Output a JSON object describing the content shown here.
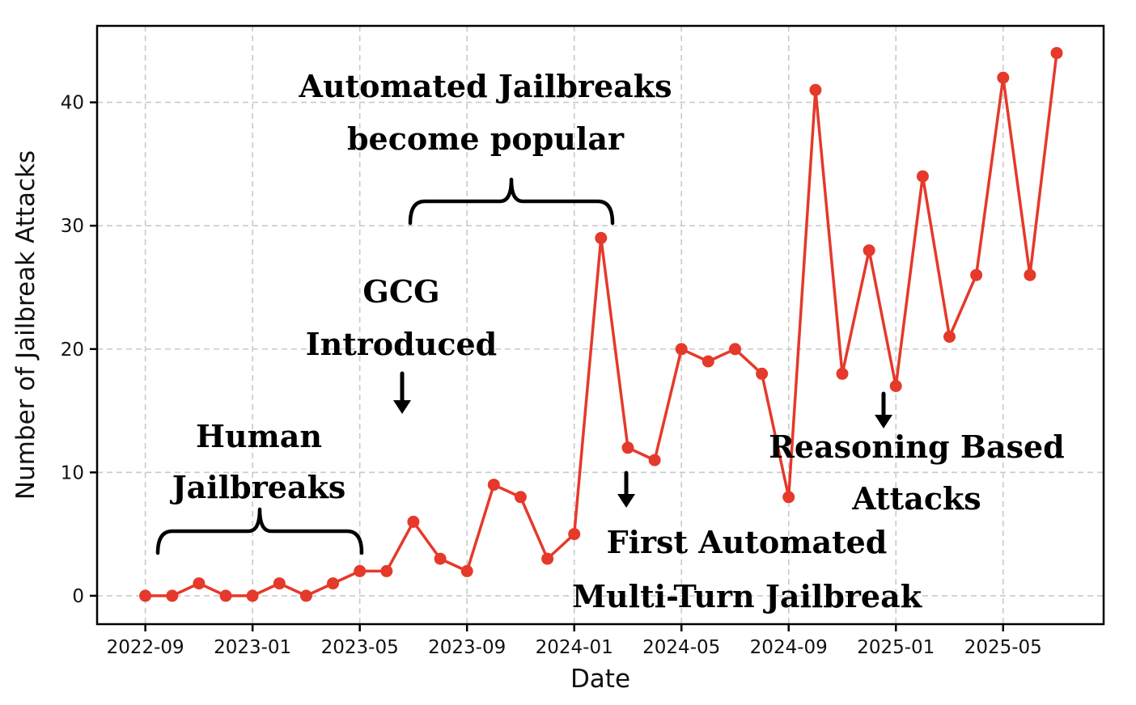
{
  "figure": {
    "background": "#ffffff"
  },
  "chart_data": {
    "type": "line",
    "title": "",
    "xlabel": "Date",
    "ylabel": "Number of Jailbreak Attacks",
    "x": [
      "2022-09",
      "2022-10",
      "2022-11",
      "2022-12",
      "2023-01",
      "2023-02",
      "2023-03",
      "2023-04",
      "2023-05",
      "2023-06",
      "2023-07",
      "2023-08",
      "2023-09",
      "2023-10",
      "2023-11",
      "2023-12",
      "2024-01",
      "2024-02",
      "2024-03",
      "2024-04",
      "2024-05",
      "2024-06",
      "2024-07",
      "2024-08",
      "2024-09",
      "2024-10",
      "2024-11",
      "2024-12",
      "2025-01",
      "2025-02",
      "2025-03",
      "2025-04",
      "2025-05",
      "2025-06",
      "2025-07"
    ],
    "values": [
      0,
      0,
      1,
      0,
      0,
      1,
      0,
      1,
      2,
      2,
      6,
      3,
      2,
      9,
      8,
      3,
      5,
      29,
      12,
      11,
      20,
      19,
      20,
      18,
      8,
      41,
      18,
      28,
      17,
      34,
      21,
      26,
      42,
      26,
      44
    ],
    "x_tick_labels": [
      "2022-09",
      "2023-01",
      "2023-05",
      "2023-09",
      "2024-01",
      "2024-05",
      "2024-09",
      "2025-01",
      "2025-05"
    ],
    "y_ticks": [
      0,
      10,
      20,
      30,
      40
    ],
    "ylim": [
      -2.3,
      46.2
    ],
    "grid": true,
    "grid_style": "dashed",
    "legend_position": "none",
    "line_color": "#e5392b",
    "marker": "circle",
    "grid_color": "#c9c9c9",
    "spine_color": "#000000",
    "annotation_color": "#000000",
    "annotations": [
      {
        "id": "human-jailbreaks",
        "lines": [
          "Human",
          "Jailbreaks"
        ],
        "shape": "brace",
        "from": "2022-09",
        "to": "2023-05"
      },
      {
        "id": "gcg-introduced",
        "lines": [
          "GCG",
          "Introduced"
        ],
        "shape": "arrow",
        "target": "2023-07"
      },
      {
        "id": "automated-jailbreaks",
        "lines": [
          "Automated Jailbreaks",
          "become popular"
        ],
        "shape": "brace",
        "from": "2023-07",
        "to": "2024-02"
      },
      {
        "id": "first-automated-multiturn",
        "lines": [
          "First Automated",
          "Multi-Turn Jailbreak"
        ],
        "shape": "arrow",
        "target": "2024-03"
      },
      {
        "id": "reasoning-based",
        "lines": [
          "Reasoning Based",
          "Attacks"
        ],
        "shape": "arrow",
        "target": "2025-01"
      }
    ]
  }
}
